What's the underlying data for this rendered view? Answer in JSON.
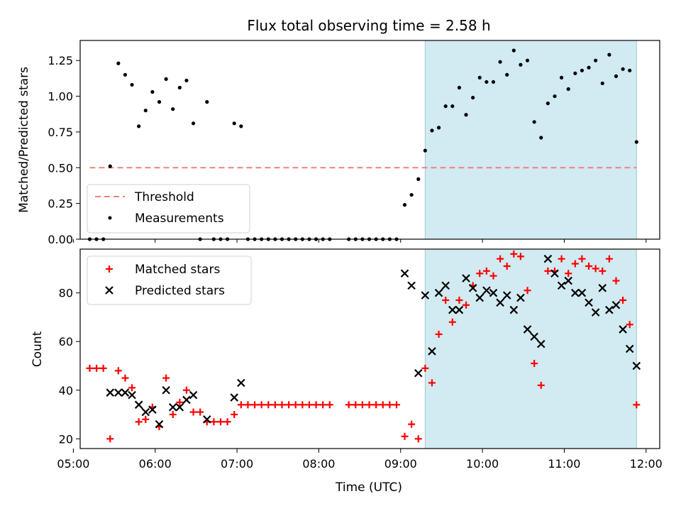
{
  "chart_data": {
    "type": "scatter",
    "title": "Flux total observing time = 2.58 h",
    "xlabel": "Time (UTC)",
    "xlim": [
      "05:05",
      "12:10"
    ],
    "x_ticks": [
      "05:00",
      "06:00",
      "07:00",
      "08:00",
      "09:00",
      "10:00",
      "11:00",
      "12:00"
    ],
    "shaded_interval": {
      "start": "09:18",
      "end": "11:53",
      "color": "#add8e6"
    },
    "ratio_panel": {
      "ylabel": "Matched/Predicted stars",
      "ylim": [
        0,
        1.39
      ],
      "y_ticks": [
        "0.00",
        "0.25",
        "0.50",
        "0.75",
        "1.00",
        "1.25"
      ],
      "threshold": {
        "name": "Threshold",
        "value": 0.5,
        "x_start": "05:12",
        "x_end": "11:53",
        "color": "#f08080",
        "style": "dashed"
      },
      "measurements": {
        "name": "Measurements",
        "color": "#000000",
        "x": [
          "05:12",
          "05:17",
          "05:22",
          "05:27",
          "05:33",
          "05:38",
          "05:43",
          "05:48",
          "05:53",
          "05:58",
          "06:03",
          "06:08",
          "06:13",
          "06:18",
          "06:23",
          "06:28",
          "06:33",
          "06:38",
          "06:43",
          "06:48",
          "06:53",
          "06:58",
          "07:03",
          "07:08",
          "07:13",
          "07:18",
          "07:23",
          "07:28",
          "07:33",
          "07:38",
          "07:43",
          "07:48",
          "07:53",
          "07:58",
          "08:03",
          "08:08",
          "08:22",
          "08:27",
          "08:32",
          "08:37",
          "08:42",
          "08:47",
          "08:52",
          "08:57",
          "09:03",
          "09:08",
          "09:13",
          "09:18",
          "09:23",
          "09:28",
          "09:33",
          "09:38",
          "09:43",
          "09:48",
          "09:53",
          "09:58",
          "10:03",
          "10:08",
          "10:13",
          "10:18",
          "10:23",
          "10:28",
          "10:33",
          "10:38",
          "10:43",
          "10:48",
          "10:53",
          "10:58",
          "11:03",
          "11:08",
          "11:13",
          "11:18",
          "11:23",
          "11:28",
          "11:33",
          "11:38",
          "11:43",
          "11:48",
          "11:53"
        ],
        "y": [
          0,
          0,
          0,
          0.51,
          1.23,
          1.15,
          1.08,
          0.79,
          0.9,
          1.03,
          0.96,
          1.12,
          0.91,
          1.06,
          1.11,
          0.81,
          0,
          0.96,
          0,
          0,
          0,
          0.81,
          0.79,
          0,
          0,
          0,
          0,
          0,
          0,
          0,
          0,
          0,
          0,
          0,
          0,
          0,
          0,
          0,
          0,
          0,
          0,
          0,
          0,
          0,
          0.24,
          0.31,
          0.42,
          0.62,
          0.76,
          0.78,
          0.93,
          0.93,
          1.06,
          0.87,
          0.99,
          1.13,
          1.1,
          1.1,
          1.24,
          1.15,
          1.32,
          1.22,
          1.25,
          0.82,
          0.71,
          0.95,
          1.0,
          1.13,
          1.05,
          1.16,
          1.18,
          1.2,
          1.25,
          1.09,
          1.29,
          1.14,
          1.19,
          1.18,
          0.68
        ]
      }
    },
    "count_panel": {
      "ylabel": "Count",
      "ylim": [
        16,
        98
      ],
      "y_ticks": [
        "20",
        "40",
        "60",
        "80"
      ],
      "series": [
        {
          "name": "Matched stars",
          "marker": "plus",
          "color": "#ff0000",
          "x": [
            "05:12",
            "05:17",
            "05:22",
            "05:27",
            "05:33",
            "05:38",
            "05:43",
            "05:48",
            "05:53",
            "05:58",
            "06:03",
            "06:08",
            "06:13",
            "06:18",
            "06:23",
            "06:28",
            "06:33",
            "06:38",
            "06:43",
            "06:48",
            "06:53",
            "06:58",
            "07:03",
            "07:08",
            "07:13",
            "07:18",
            "07:23",
            "07:28",
            "07:33",
            "07:38",
            "07:43",
            "07:48",
            "07:53",
            "07:58",
            "08:03",
            "08:08",
            "08:22",
            "08:27",
            "08:32",
            "08:37",
            "08:42",
            "08:47",
            "08:52",
            "08:57",
            "09:03",
            "09:08",
            "09:13",
            "09:18",
            "09:23",
            "09:28",
            "09:33",
            "09:38",
            "09:43",
            "09:48",
            "09:53",
            "09:58",
            "10:03",
            "10:08",
            "10:13",
            "10:18",
            "10:23",
            "10:28",
            "10:33",
            "10:38",
            "10:43",
            "10:48",
            "10:53",
            "10:58",
            "11:03",
            "11:08",
            "11:13",
            "11:18",
            "11:23",
            "11:28",
            "11:33",
            "11:38",
            "11:43",
            "11:48",
            "11:53"
          ],
          "y": [
            49,
            49,
            49,
            20,
            48,
            45,
            41,
            27,
            28,
            33,
            25,
            45,
            30,
            35,
            40,
            31,
            31,
            27,
            27,
            27,
            27,
            30,
            34,
            34,
            34,
            34,
            34,
            34,
            34,
            34,
            34,
            34,
            34,
            34,
            34,
            34,
            34,
            34,
            34,
            34,
            34,
            34,
            34,
            34,
            21,
            26,
            20,
            49,
            43,
            63,
            77,
            68,
            77,
            75,
            83,
            88,
            89,
            87,
            94,
            91,
            96,
            95,
            81,
            51,
            42,
            89,
            89,
            94,
            88,
            92,
            94,
            91,
            90,
            89,
            94,
            85,
            77,
            67,
            34
          ]
        },
        {
          "name": "Predicted stars",
          "marker": "x",
          "color": "#000000",
          "x": [
            "05:27",
            "05:33",
            "05:38",
            "05:43",
            "05:48",
            "05:53",
            "05:58",
            "06:03",
            "06:08",
            "06:13",
            "06:18",
            "06:23",
            "06:28",
            "06:38",
            "06:58",
            "07:03",
            "09:03",
            "09:08",
            "09:13",
            "09:18",
            "09:23",
            "09:28",
            "09:33",
            "09:38",
            "09:43",
            "09:48",
            "09:53",
            "09:58",
            "10:03",
            "10:08",
            "10:13",
            "10:18",
            "10:23",
            "10:28",
            "10:33",
            "10:38",
            "10:43",
            "10:48",
            "10:53",
            "10:58",
            "11:03",
            "11:08",
            "11:13",
            "11:18",
            "11:23",
            "11:28",
            "11:33",
            "11:38",
            "11:43",
            "11:48",
            "11:53"
          ],
          "y": [
            39,
            39,
            39,
            38,
            34,
            31,
            32,
            26,
            40,
            33,
            33,
            36,
            38,
            28,
            37,
            43,
            88,
            83,
            47,
            79,
            56,
            80,
            83,
            73,
            73,
            86,
            82,
            78,
            81,
            80,
            76,
            79,
            73,
            78,
            65,
            62,
            59,
            94,
            88,
            83,
            85,
            80,
            80,
            76,
            72,
            82,
            73,
            75,
            65,
            57,
            50
          ]
        }
      ]
    },
    "legend": {
      "placement": "upper-left"
    }
  }
}
